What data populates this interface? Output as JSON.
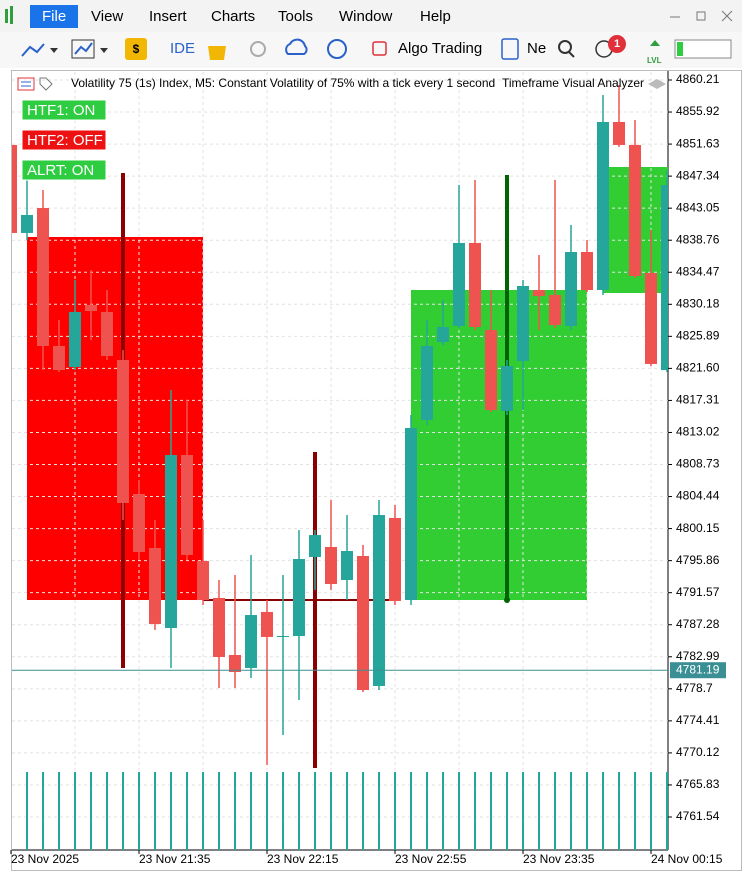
{
  "menu": [
    "File",
    "View",
    "Insert",
    "Charts",
    "Tools",
    "Window",
    "Help"
  ],
  "toolbar": {
    "ide": "IDE",
    "algo_trading": "Algo Trading",
    "new_order": "Ne",
    "notifications": "1",
    "lvl": "LVL"
  },
  "chart_data": {
    "type": "candlestick",
    "title": "Volatility 75 (1s) Index, M5:  Constant Volatility of 75% with a tick every 1 second",
    "indicator": "Timeframe Visual Analyzer",
    "buttons": [
      "HTF1: ON",
      "HTF2: OFF",
      "ALRT: ON"
    ],
    "categories": [
      "23 Nov 2025",
      null,
      null,
      null,
      null,
      null,
      null,
      null,
      "23 Nov 21:35",
      null,
      null,
      null,
      null,
      null,
      null,
      null,
      "23 Nov 22:15",
      null,
      null,
      null,
      null,
      null,
      null,
      null,
      "23 Nov 22:55",
      null,
      null,
      null,
      null,
      null,
      null,
      null,
      "23 Nov 23:35",
      null,
      null,
      null,
      null,
      null,
      null,
      null,
      "24 Nov 00:15",
      null
    ],
    "open": [
      4851.51,
      4839.73,
      4843.07,
      4824.6,
      4821.79,
      4830.09,
      4829.15,
      4822.72,
      4804.78,
      4797.55,
      4786.84,
      4810.0,
      4795.81,
      4790.86,
      4783.23,
      4781.49,
      4788.99,
      4785.64,
      4785.77,
      4796.35,
      4797.69,
      4793.27,
      4796.48,
      4779.08,
      4801.57,
      4790.59,
      4814.69,
      4825.13,
      4827.28,
      4838.39,
      4826.74,
      4815.9,
      4822.59,
      4832.09,
      4831.43,
      4827.28,
      4837.18,
      4832.09,
      4854.59,
      4851.51,
      4834.37,
      4821.38
    ],
    "high": [
      4852.18,
      4846.82,
      4845.48,
      4828.08,
      4833.43,
      4834.77,
      4832.09,
      4824.06,
      4806.66,
      4801.3,
      4818.71,
      4817.37,
      4801.3,
      4793.27,
      4793.94,
      4796.62,
      4790.59,
      4793.94,
      4799.96,
      4799.96,
      4803.98,
      4801.97,
      4797.96,
      4803.98,
      4803.31,
      4815.36,
      4828.08,
      4830.76,
      4846.15,
      4846.82,
      4832.09,
      4822.72,
      4833.43,
      4836.78,
      4846.82,
      4840.8,
      4838.79,
      4858.2,
      4859.54,
      4854.85,
      4840.13,
      4848.16
    ],
    "low": [
      4838.79,
      4838.79,
      4821.38,
      4821.12,
      4821.38,
      4825.4,
      4822.72,
      4801.3,
      4795.95,
      4786.58,
      4781.49,
      4795.95,
      4789.92,
      4778.81,
      4778.81,
      4780.15,
      4768.5,
      4772.52,
      4777.2,
      4791.93,
      4791.93,
      4790.59,
      4778.28,
      4778.54,
      4789.92,
      4789.92,
      4814.02,
      4824.73,
      4827.01,
      4826.74,
      4815.76,
      4815.36,
      4816.03,
      4826.74,
      4827.01,
      4826.74,
      4831.83,
      4831.43,
      4851.24,
      4833.7,
      4821.92,
      4821.12
    ],
    "close": [
      4839.73,
      4842.14,
      4824.6,
      4821.38,
      4829.15,
      4829.28,
      4823.26,
      4803.58,
      4797.02,
      4787.38,
      4810.0,
      4796.62,
      4790.59,
      4782.96,
      4780.95,
      4788.58,
      4785.64,
      4785.77,
      4796.08,
      4799.29,
      4792.73,
      4797.15,
      4778.54,
      4801.97,
      4790.46,
      4813.62,
      4824.6,
      4827.14,
      4838.39,
      4827.14,
      4816.03,
      4821.92,
      4832.63,
      4831.29,
      4827.41,
      4837.18,
      4832.09,
      4854.59,
      4851.51,
      4833.97,
      4822.19,
      4846.15
    ],
    "up_color": "#26a69a",
    "down_color": "#ef5350",
    "last_price": 4781.19,
    "ylim": [
      4757.12,
      4861.28
    ],
    "yticks": [
      4860.21,
      4855.92,
      4851.63,
      4847.34,
      4843.05,
      4838.76,
      4834.47,
      4830.18,
      4825.89,
      {
        "value": 4821.6,
        "label": "4821.60"
      },
      4817.31,
      4813.02,
      4808.73,
      4804.44,
      4800.15,
      4795.86,
      4791.57,
      4787.28,
      4782.99,
      4778.7,
      4774.41,
      4770.12,
      4765.83,
      4761.54
    ],
    "grid": true
  }
}
